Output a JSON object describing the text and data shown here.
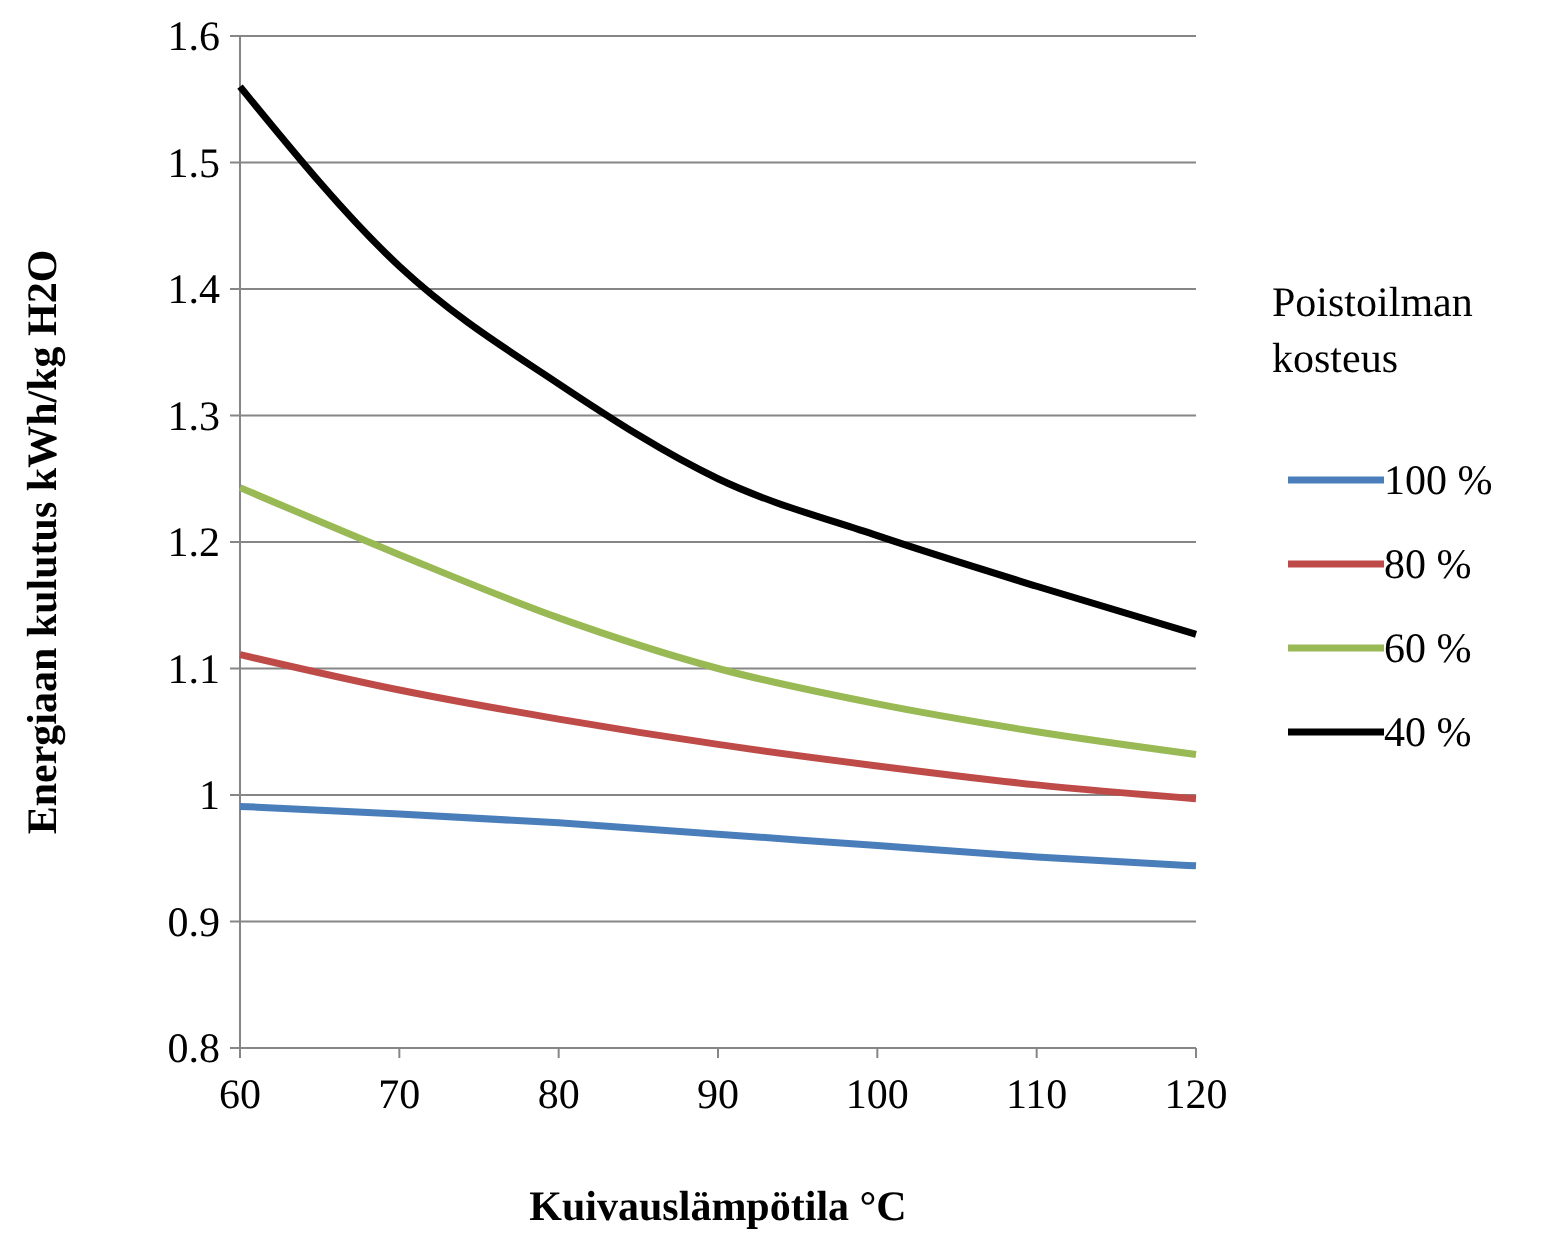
{
  "chart_data": {
    "type": "line",
    "xlabel": "Kuivauslämpötila °C",
    "ylabel": "Energiaan kulutus kWh/kg H2O",
    "legend_title": "Poistoilman kosteus",
    "x": [
      60,
      70,
      80,
      90,
      100,
      110,
      120
    ],
    "xlim": [
      60,
      120
    ],
    "xticks": [
      60,
      70,
      80,
      90,
      100,
      110,
      120
    ],
    "ylim": [
      0.8,
      1.6
    ],
    "yticks": [
      0.8,
      0.9,
      1,
      1.1,
      1.2,
      1.3,
      1.4,
      1.5,
      1.6
    ],
    "grid": "y",
    "legend": "right",
    "marker": "none",
    "line_style": "solid",
    "series": [
      {
        "name": "100 %",
        "color": "#4a7ebb",
        "values": [
          0.991,
          0.985,
          0.978,
          0.969,
          0.96,
          0.951,
          0.944
        ]
      },
      {
        "name": "80 %",
        "color": "#be4b48",
        "values": [
          1.111,
          1.083,
          1.06,
          1.04,
          1.023,
          1.008,
          0.997
        ]
      },
      {
        "name": "60 %",
        "color": "#98b954",
        "values": [
          1.243,
          1.19,
          1.14,
          1.1,
          1.072,
          1.05,
          1.032
        ]
      },
      {
        "name": "40 %",
        "color": "#000000",
        "values": [
          1.56,
          1.418,
          1.325,
          1.25,
          1.205,
          1.165,
          1.127
        ]
      }
    ]
  }
}
